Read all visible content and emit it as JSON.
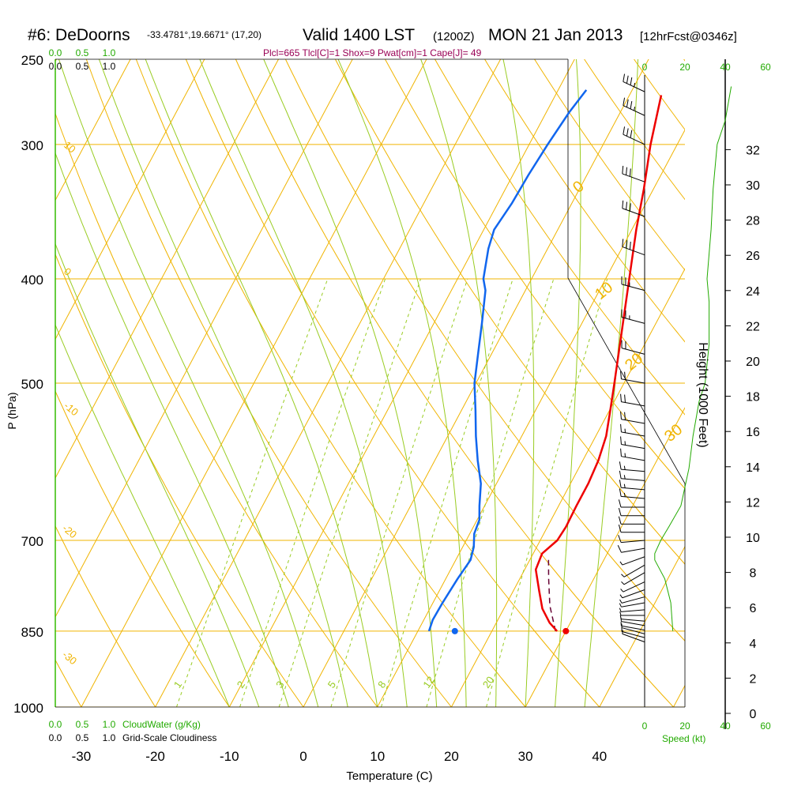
{
  "header": {
    "station": "#6: DeDoorns",
    "coords": "-33.4781°,19.6671° (17,20)",
    "valid_main": "Valid 1400 LST",
    "valid_z": "(1200Z)",
    "valid_date": "MON 21 Jan 2013",
    "fcst": "[12hrFcst@0346z]",
    "indices": "Plcl=665 Tlcl[C]=1 Shox=9 Pwat[cm]=1 Cape[J]= 49"
  },
  "labels": {
    "ylabel": "P (hPa)",
    "xlabel": "Temperature (C)",
    "height_label": "Height (1000 Feet)",
    "cloudwater_label": "CloudWater (g/Kg)",
    "cloudiness_label": "Grid-Scale Cloudiness",
    "speed_label": "Speed (kt)"
  },
  "colors": {
    "temperature": "#ee0000",
    "dewpoint": "#1166ee",
    "parcel": "#660033",
    "isobar": "#f0b400",
    "dry_adiabat": "#f0b400",
    "moist_adiabat": "#99cc22",
    "mixing_ratio": "#99cc22",
    "green_text": "#22aa00",
    "indices_text": "#990055"
  },
  "cloud_scale": {
    "cloudwater_ticks": [
      "0.0",
      "0.5",
      "1.0"
    ],
    "cloudiness_ticks": [
      "0.0",
      "0.5",
      "1.0"
    ]
  },
  "speed_scale": {
    "ticks": [
      "0",
      "20",
      "40",
      "60"
    ]
  },
  "chart_data": {
    "type": "line",
    "title": "#6: DeDoorns Valid 1400 LST (1200Z) MON 21 Jan 2013",
    "xlabel": "Temperature (C)",
    "ylabel": "P (hPa)",
    "y_scale": "log",
    "ylim": [
      1000,
      250
    ],
    "xlim": [
      -30,
      40
    ],
    "pressure_ticks": [
      250,
      300,
      400,
      500,
      700,
      850,
      1000
    ],
    "temp_ticks": [
      -30,
      -20,
      -10,
      0,
      10,
      20,
      30,
      40
    ],
    "height_ticks": [
      0,
      2,
      4,
      6,
      8,
      10,
      12,
      14,
      16,
      18,
      20,
      22,
      24,
      26,
      28,
      30,
      32
    ],
    "dry_adiabat_labels": [
      "30",
      "20",
      "10",
      "0",
      "-10",
      "-20",
      "-30"
    ],
    "moist_adiabat_labels": [
      "10",
      "0",
      "20",
      "30"
    ],
    "mixing_ratio_labels": [
      "1",
      "2",
      "3",
      "5",
      "8",
      "12",
      "20"
    ],
    "series": [
      {
        "name": "Temperature",
        "points": [
          [
            850,
            28.8
          ],
          [
            835,
            27.2
          ],
          [
            810,
            25.2
          ],
          [
            780,
            23.5
          ],
          [
            745,
            21.5
          ],
          [
            720,
            21.2
          ],
          [
            700,
            22.3
          ],
          [
            680,
            22.5
          ],
          [
            650,
            22.4
          ],
          [
            620,
            22.4
          ],
          [
            590,
            22.1
          ],
          [
            560,
            21.4
          ],
          [
            530,
            20.1
          ],
          [
            500,
            18.7
          ],
          [
            450,
            16.1
          ],
          [
            400,
            13.2
          ],
          [
            360,
            10.6
          ],
          [
            330,
            8.7
          ],
          [
            300,
            6.4
          ],
          [
            270,
            4.3
          ]
        ]
      },
      {
        "name": "Dewpoint",
        "points": [
          [
            850,
            11.5
          ],
          [
            830,
            11.2
          ],
          [
            800,
            11.3
          ],
          [
            760,
            11.6
          ],
          [
            730,
            12.0
          ],
          [
            710,
            11.5
          ],
          [
            690,
            10.6
          ],
          [
            670,
            10.3
          ],
          [
            650,
            9.3
          ],
          [
            620,
            7.9
          ],
          [
            590,
            5.8
          ],
          [
            560,
            3.8
          ],
          [
            530,
            1.9
          ],
          [
            500,
            -0.2
          ],
          [
            470,
            -1.8
          ],
          [
            440,
            -3.5
          ],
          [
            410,
            -5.4
          ],
          [
            400,
            -6.5
          ],
          [
            375,
            -8.0
          ],
          [
            360,
            -8.6
          ],
          [
            340,
            -8.1
          ],
          [
            320,
            -7.9
          ],
          [
            300,
            -7.5
          ],
          [
            280,
            -6.9
          ],
          [
            267,
            -6.2
          ]
        ]
      },
      {
        "name": "Parcel",
        "points": [
          [
            850,
            28.6
          ],
          [
            805,
            26.0
          ],
          [
            760,
            23.9
          ],
          [
            725,
            22.3
          ]
        ]
      }
    ],
    "surface_points": {
      "temperature": 30,
      "dewpoint": 15
    },
    "ascending_heights": [
      [
        850,
        4.8
      ],
      [
        800,
        6.3
      ],
      [
        750,
        8.2
      ],
      [
        700,
        10.0
      ],
      [
        650,
        11.9
      ],
      [
        600,
        14.0
      ],
      [
        550,
        16.1
      ],
      [
        500,
        18.4
      ],
      [
        450,
        20.9
      ],
      [
        400,
        23.6
      ],
      [
        350,
        26.6
      ],
      [
        300,
        30.1
      ],
      [
        267,
        32.7
      ]
    ],
    "wind_speed_profile": [
      [
        850,
        14
      ],
      [
        800,
        13
      ],
      [
        760,
        10
      ],
      [
        730,
        5
      ],
      [
        720,
        5
      ],
      [
        700,
        8
      ],
      [
        680,
        12
      ],
      [
        650,
        18
      ],
      [
        600,
        22
      ],
      [
        560,
        24
      ],
      [
        520,
        27
      ],
      [
        500,
        30
      ],
      [
        460,
        32
      ],
      [
        420,
        32
      ],
      [
        400,
        31
      ],
      [
        360,
        33
      ],
      [
        330,
        34
      ],
      [
        300,
        36
      ],
      [
        285,
        40
      ],
      [
        265,
        43
      ]
    ],
    "wind_barbs": [
      [
        870,
        290,
        5
      ],
      [
        862,
        285,
        5
      ],
      [
        855,
        285,
        5
      ],
      [
        848,
        280,
        5
      ],
      [
        840,
        280,
        5
      ],
      [
        832,
        275,
        5
      ],
      [
        822,
        270,
        5
      ],
      [
        812,
        265,
        5
      ],
      [
        800,
        260,
        5
      ],
      [
        790,
        255,
        5
      ],
      [
        778,
        250,
        5
      ],
      [
        765,
        245,
        5
      ],
      [
        750,
        240,
        5
      ],
      [
        738,
        240,
        5
      ],
      [
        725,
        250,
        5
      ],
      [
        712,
        260,
        10
      ],
      [
        700,
        265,
        10
      ],
      [
        688,
        270,
        10
      ],
      [
        676,
        270,
        10
      ],
      [
        664,
        270,
        10
      ],
      [
        652,
        270,
        10
      ],
      [
        640,
        275,
        15
      ],
      [
        628,
        275,
        15
      ],
      [
        616,
        275,
        15
      ],
      [
        604,
        275,
        15
      ],
      [
        590,
        280,
        15
      ],
      [
        575,
        280,
        15
      ],
      [
        560,
        280,
        15
      ],
      [
        545,
        280,
        20
      ],
      [
        525,
        280,
        20
      ],
      [
        500,
        280,
        20
      ],
      [
        470,
        285,
        20
      ],
      [
        440,
        285,
        25
      ],
      [
        410,
        285,
        25
      ],
      [
        380,
        290,
        30
      ],
      [
        350,
        290,
        30
      ],
      [
        325,
        290,
        30
      ],
      [
        300,
        295,
        30
      ],
      [
        282,
        295,
        35
      ],
      [
        268,
        295,
        35
      ]
    ]
  }
}
